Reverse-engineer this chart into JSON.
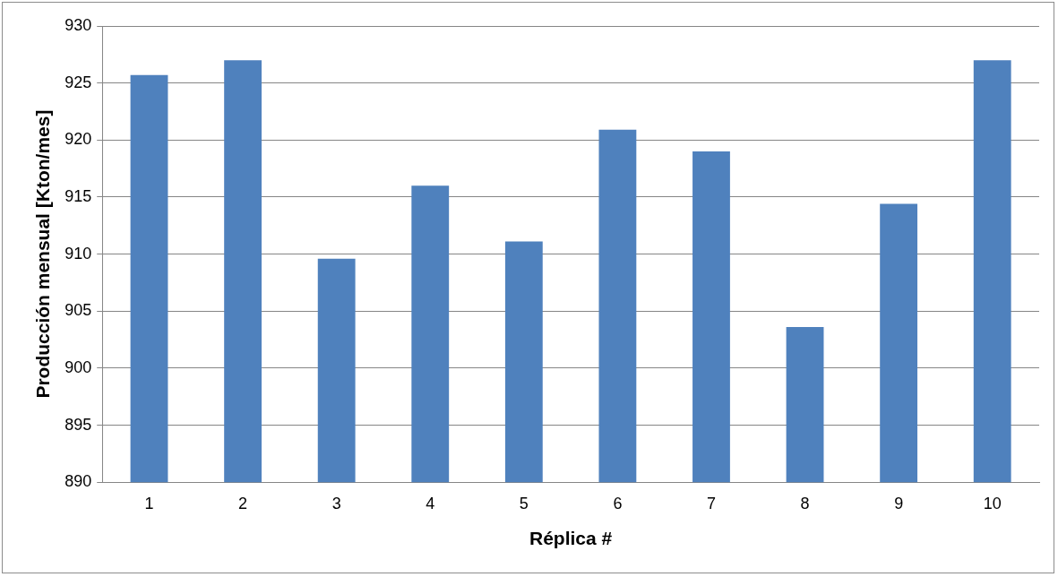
{
  "chart_data": {
    "type": "bar",
    "xlabel": "Réplica #",
    "ylabel": "Producción mensual [Kton/mes]",
    "categories": [
      "1",
      "2",
      "3",
      "4",
      "5",
      "6",
      "7",
      "8",
      "9",
      "10"
    ],
    "series": [
      {
        "color": "#4f81bd",
        "values": [
          925.7,
          927.0,
          909.6,
          916.0,
          911.1,
          920.9,
          919.0,
          903.6,
          914.4,
          927.0
        ]
      }
    ],
    "ylim": [
      890,
      930
    ],
    "yticks": [
      890,
      895,
      900,
      905,
      910,
      915,
      920,
      925,
      930
    ],
    "grid": "y",
    "legend": false
  }
}
